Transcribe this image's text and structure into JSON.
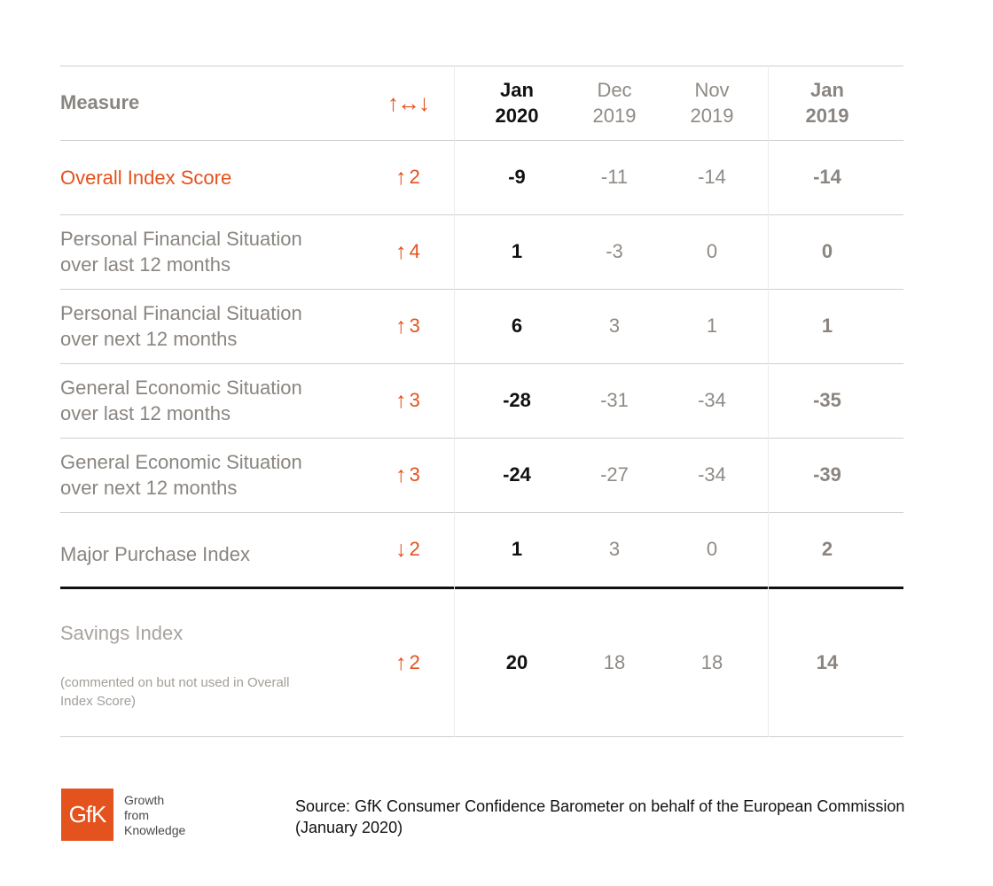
{
  "header": {
    "measure_label": "Measure",
    "change_arrows": "↑↔↓",
    "columns": [
      {
        "line1": "Jan",
        "line2": "2020"
      },
      {
        "line1": "Dec",
        "line2": "2019"
      },
      {
        "line1": "Nov",
        "line2": "2019"
      },
      {
        "line1": "Jan",
        "line2": "2019"
      }
    ]
  },
  "rows": [
    {
      "label1": "Overall Index Score",
      "label2": "",
      "arrow": "↑",
      "change": "2",
      "values": [
        "-9",
        "-11",
        "-14",
        "-14"
      ]
    },
    {
      "label1": "Personal Financial Situation",
      "label2": "over last 12 months",
      "arrow": "↑",
      "change": "4",
      "values": [
        "1",
        "-3",
        "0",
        "0"
      ]
    },
    {
      "label1": "Personal Financial Situation",
      "label2": "over next 12 months",
      "arrow": "↑",
      "change": "3",
      "values": [
        "6",
        "3",
        "1",
        "1"
      ]
    },
    {
      "label1": "General Economic Situation",
      "label2": "over last 12 months",
      "arrow": "↑",
      "change": "3",
      "values": [
        "-28",
        "-31",
        "-34",
        "-35"
      ]
    },
    {
      "label1": "General Economic Situation",
      "label2": "over next 12 months",
      "arrow": "↑",
      "change": "3",
      "values": [
        "-24",
        "-27",
        "-34",
        "-39"
      ]
    },
    {
      "label1": "Major Purchase Index",
      "label2": "",
      "arrow": "↓",
      "change": "2",
      "values": [
        "1",
        "3",
        "0",
        "2"
      ]
    }
  ],
  "savings": {
    "label": "Savings Index",
    "note_line1": "(commented on but not used in Overall",
    "note_line2": "Index Score)",
    "arrow": "↑",
    "change": "2",
    "values": [
      "20",
      "18",
      "18",
      "14"
    ]
  },
  "footer": {
    "logo_text": "GfK",
    "tagline": [
      "Growth",
      "from",
      "Knowledge"
    ],
    "source_line1": "Source: GfK Consumer Confidence Barometer on behalf of the European Commission",
    "source_line2": "(January 2020)"
  },
  "colors": {
    "accent": "#e4521d",
    "text_dark": "#111111",
    "text_grey": "#8a8580"
  }
}
